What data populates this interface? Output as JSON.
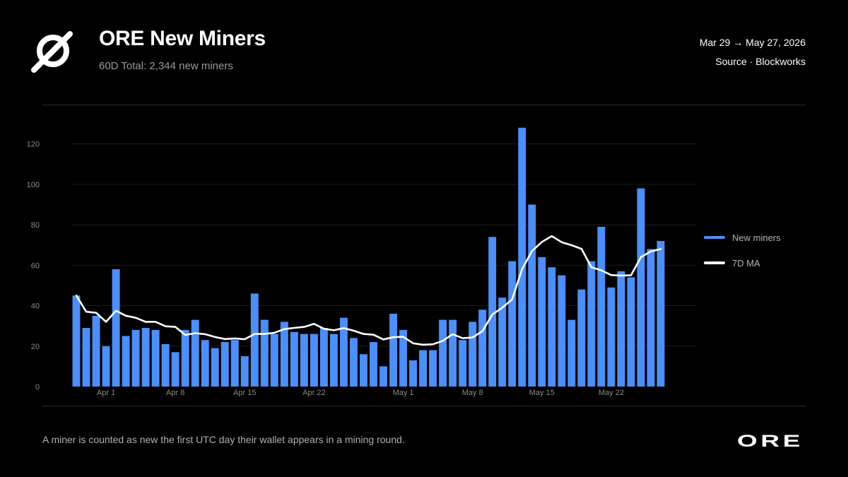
{
  "header": {
    "title": "ORE New Miners",
    "subtitle": "60D Total: 2,344 new miners",
    "date_range": "Mar 29 → May 27, 2026",
    "source": "Source · Blockworks"
  },
  "footer": {
    "note": "A miner is counted as new the first UTC day their wallet appears in a mining round.",
    "brand": "ORE"
  },
  "colors": {
    "bar": "#4d8ef7",
    "line": "#ffffff",
    "grid": "#1c1c1c",
    "tick": "#8a8a8a"
  },
  "chart_data": {
    "type": "bar",
    "x_tick_labels": [
      "Apr 1",
      "Apr 8",
      "Apr 15",
      "Apr 22",
      "May 1",
      "May 8",
      "May 15",
      "May 22"
    ],
    "x_tick_index": [
      3,
      10,
      17,
      24,
      33,
      40,
      47,
      54
    ],
    "ylim": [
      0,
      130
    ],
    "yticks": [
      0,
      20,
      40,
      60,
      80,
      100,
      120
    ],
    "grid": true,
    "legend_position": "right",
    "series": [
      {
        "name": "New miners",
        "type": "bar",
        "values": [
          45,
          29,
          35,
          20,
          58,
          25,
          28,
          29,
          28,
          21,
          17,
          28,
          33,
          23,
          19,
          22,
          23,
          15,
          46,
          33,
          26,
          32,
          27,
          26,
          26,
          29,
          26,
          34,
          24,
          16,
          22,
          10,
          36,
          28,
          13,
          18,
          18,
          33,
          33,
          23,
          32,
          38,
          74,
          44,
          62,
          128,
          90,
          64,
          59,
          55,
          33,
          48,
          62,
          79,
          49,
          57,
          54,
          98,
          68,
          72
        ]
      },
      {
        "name": "7D MA",
        "type": "line",
        "values": [
          45,
          37,
          36.5,
          32,
          37.5,
          35,
          34,
          32,
          32,
          29.8,
          29.5,
          25.5,
          26.4,
          25.9,
          24.5,
          23.5,
          23.8,
          23.4,
          26,
          26,
          26.6,
          28.4,
          29,
          29.5,
          31,
          28.6,
          27.8,
          28.9,
          27.6,
          26,
          25.6,
          23.3,
          24.4,
          24.6,
          21.4,
          20.7,
          20.9,
          22.6,
          25.9,
          23.9,
          24.3,
          27.4,
          35.6,
          39,
          43.1,
          58,
          67,
          71.5,
          74.4,
          71.4,
          69.9,
          68.1,
          59,
          57.5,
          55.1,
          54.9,
          55,
          64,
          66.8,
          68
        ]
      }
    ]
  }
}
